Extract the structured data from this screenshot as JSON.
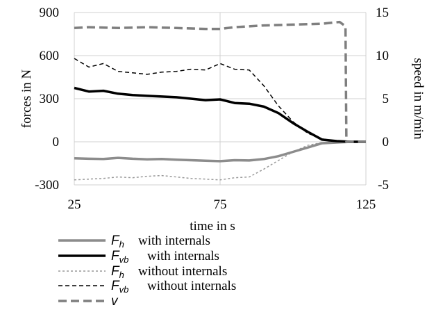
{
  "chart_data": {
    "type": "line",
    "xlabel": "time in s",
    "ylabel_left": "forces in N",
    "ylabel_right": "speed in m/min",
    "xlim": [
      25,
      125
    ],
    "ylim_left": [
      -300,
      900
    ],
    "ylim_right": [
      -5,
      15
    ],
    "x_ticks": [
      25,
      75,
      125
    ],
    "y_ticks_left": [
      -300,
      0,
      300,
      600,
      900
    ],
    "y_ticks_right": [
      -5,
      0,
      5,
      10,
      15
    ],
    "grid": "vertical and horizontal",
    "legend_position": "bottom-left",
    "series": [
      {
        "name_symbol": "F",
        "name_sub": "h",
        "name_text": "with internals",
        "axis": "left",
        "color": "#8c8c8c",
        "dash": "solid",
        "width": 3.5,
        "x": [
          25,
          30,
          35,
          40,
          45,
          50,
          55,
          60,
          65,
          70,
          75,
          80,
          85,
          90,
          95,
          100,
          105,
          110,
          115,
          120,
          125
        ],
        "y": [
          -115,
          -118,
          -120,
          -112,
          -118,
          -122,
          -120,
          -125,
          -128,
          -132,
          -135,
          -128,
          -130,
          -120,
          -100,
          -70,
          -40,
          -10,
          -5,
          0,
          0
        ]
      },
      {
        "name_symbol": "F",
        "name_sub": "vb",
        "name_text": "with internals",
        "axis": "left",
        "color": "#000000",
        "dash": "solid",
        "width": 3.5,
        "x": [
          25,
          30,
          35,
          40,
          45,
          50,
          55,
          60,
          65,
          70,
          75,
          80,
          85,
          90,
          95,
          100,
          105,
          110,
          115,
          120,
          125
        ],
        "y": [
          375,
          350,
          355,
          335,
          325,
          320,
          315,
          310,
          300,
          290,
          295,
          270,
          265,
          245,
          200,
          130,
          70,
          15,
          5,
          0,
          0
        ]
      },
      {
        "name_symbol": "F",
        "name_sub": "h",
        "name_text": "without internals",
        "axis": "left",
        "color": "#999999",
        "dash": "dotted",
        "width": 1.5,
        "x": [
          25,
          30,
          35,
          40,
          45,
          50,
          55,
          60,
          65,
          70,
          75,
          80,
          85,
          90,
          95,
          100,
          105,
          110,
          115,
          120,
          125
        ],
        "y": [
          -265,
          -260,
          -255,
          -245,
          -250,
          -240,
          -235,
          -245,
          -255,
          -260,
          -265,
          -250,
          -245,
          -190,
          -130,
          -70,
          -25,
          -5,
          0,
          0,
          0
        ]
      },
      {
        "name_symbol": "F",
        "name_sub": "vb",
        "name_text": "without internals",
        "axis": "left",
        "color": "#000000",
        "dash": "dashed",
        "width": 1.5,
        "x": [
          25,
          30,
          35,
          40,
          45,
          50,
          55,
          60,
          65,
          70,
          75,
          80,
          85,
          90,
          95,
          100,
          105,
          110,
          115,
          120,
          125
        ],
        "y": [
          580,
          520,
          545,
          490,
          480,
          470,
          485,
          490,
          505,
          500,
          545,
          505,
          500,
          390,
          250,
          140,
          60,
          20,
          5,
          0,
          0
        ]
      },
      {
        "name_symbol": "v",
        "name_sub": "",
        "name_text": "",
        "axis": "right",
        "color": "#7f7f7f",
        "dash": "longdash",
        "width": 3.5,
        "x": [
          25,
          30,
          40,
          50,
          60,
          70,
          75,
          80,
          90,
          100,
          110,
          116,
          118,
          118.3,
          125
        ],
        "y": [
          13.2,
          13.3,
          13.2,
          13.3,
          13.2,
          13.1,
          13.1,
          13.3,
          13.5,
          13.6,
          13.7,
          13.9,
          13.4,
          0,
          0
        ]
      }
    ]
  }
}
